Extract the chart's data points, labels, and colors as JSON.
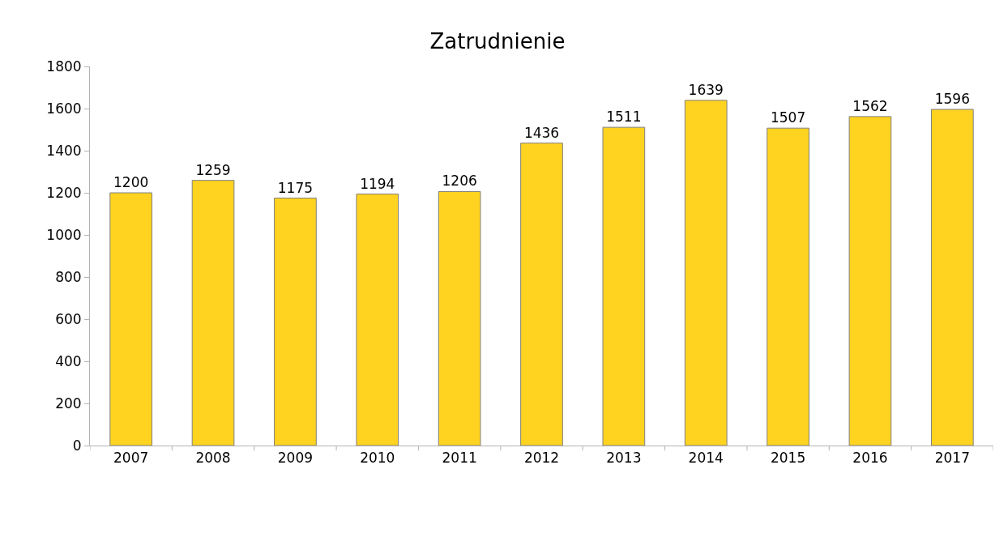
{
  "chart_data": {
    "type": "bar",
    "title": "Zatrudnienie",
    "categories": [
      "2007",
      "2008",
      "2009",
      "2010",
      "2011",
      "2012",
      "2013",
      "2014",
      "2015",
      "2016",
      "2017"
    ],
    "values": [
      1200,
      1259,
      1175,
      1194,
      1206,
      1436,
      1511,
      1639,
      1507,
      1562,
      1596
    ],
    "color": "#ffd320",
    "ylim": [
      0,
      1800
    ],
    "yticks": [
      0,
      200,
      400,
      600,
      800,
      1000,
      1200,
      1400,
      1600,
      1800
    ],
    "grid": false,
    "legend": false,
    "data_labels": true
  }
}
